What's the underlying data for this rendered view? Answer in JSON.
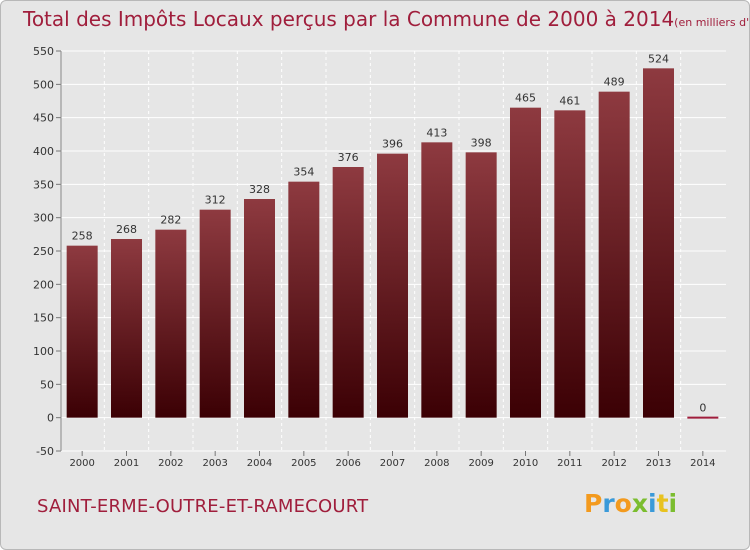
{
  "title": {
    "main": "Total des Impôts Locaux perçus par la Commune de 2000 à 2014",
    "unit": "(en milliers d'€)"
  },
  "commune": "SAINT-ERME-OUTRE-ET-RAMECOURT",
  "logo": {
    "text": "Proxiti",
    "letters": [
      "P",
      "r",
      "o",
      "x",
      "i",
      "t",
      "i"
    ],
    "colors": [
      "#f39a1e",
      "#3a9ad9",
      "#f39a1e",
      "#7bbd2f",
      "#3a9ad9",
      "#e8c21f",
      "#7bbd2f"
    ]
  },
  "colors": {
    "bar_top": "#8e3a40",
    "bar_bottom": "#3b0004",
    "grid": "#ffffff",
    "text": "#333333",
    "accent": "#a01e3c"
  },
  "chart_data": {
    "type": "bar",
    "title": "Total des Impôts Locaux perçus par la Commune de 2000 à 2014",
    "xlabel": "",
    "ylabel": "",
    "categories": [
      "2000",
      "2001",
      "2002",
      "2003",
      "2004",
      "2005",
      "2006",
      "2007",
      "2008",
      "2009",
      "2010",
      "2011",
      "2012",
      "2013",
      "2014"
    ],
    "values": [
      258,
      268,
      282,
      312,
      328,
      354,
      376,
      396,
      413,
      398,
      465,
      461,
      489,
      524,
      0
    ],
    "labels": [
      "258",
      "268",
      "282",
      "312",
      "328",
      "354",
      "376",
      "396",
      "413",
      "398",
      "465",
      "461",
      "489",
      "524",
      "0"
    ],
    "ylim": [
      -50,
      550
    ],
    "yticks": [
      -50,
      0,
      50,
      100,
      150,
      200,
      250,
      300,
      350,
      400,
      450,
      500,
      550
    ],
    "ytick_labels": [
      "-50",
      "0",
      "50",
      "100",
      "150",
      "200",
      "250",
      "300",
      "350",
      "400",
      "450",
      "500",
      "550"
    ],
    "grid": true,
    "legend": "none"
  }
}
